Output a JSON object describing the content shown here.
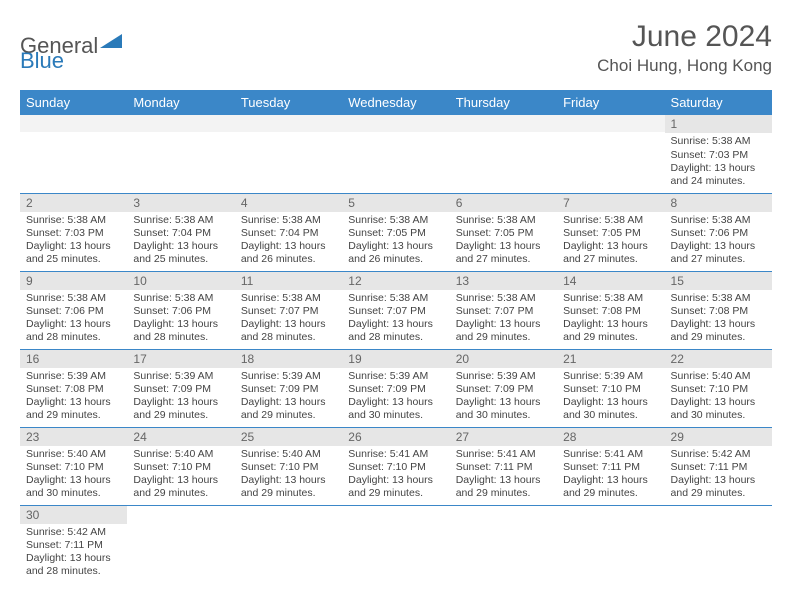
{
  "logo": {
    "part1": "General",
    "part2": "Blue"
  },
  "title": "June 2024",
  "location": "Choi Hung, Hong Kong",
  "colors": {
    "header_bg": "#3b87c8",
    "header_text": "#ffffff",
    "daynum_bg": "#e6e6e6",
    "row_divider": "#3b87c8",
    "logo_accent": "#2a7ab9",
    "text": "#444444"
  },
  "weekdays": [
    "Sunday",
    "Monday",
    "Tuesday",
    "Wednesday",
    "Thursday",
    "Friday",
    "Saturday"
  ],
  "weeks": [
    [
      null,
      null,
      null,
      null,
      null,
      null,
      {
        "d": "1",
        "sr": "Sunrise: 5:38 AM",
        "ss": "Sunset: 7:03 PM",
        "dl1": "Daylight: 13 hours",
        "dl2": "and 24 minutes."
      }
    ],
    [
      {
        "d": "2",
        "sr": "Sunrise: 5:38 AM",
        "ss": "Sunset: 7:03 PM",
        "dl1": "Daylight: 13 hours",
        "dl2": "and 25 minutes."
      },
      {
        "d": "3",
        "sr": "Sunrise: 5:38 AM",
        "ss": "Sunset: 7:04 PM",
        "dl1": "Daylight: 13 hours",
        "dl2": "and 25 minutes."
      },
      {
        "d": "4",
        "sr": "Sunrise: 5:38 AM",
        "ss": "Sunset: 7:04 PM",
        "dl1": "Daylight: 13 hours",
        "dl2": "and 26 minutes."
      },
      {
        "d": "5",
        "sr": "Sunrise: 5:38 AM",
        "ss": "Sunset: 7:05 PM",
        "dl1": "Daylight: 13 hours",
        "dl2": "and 26 minutes."
      },
      {
        "d": "6",
        "sr": "Sunrise: 5:38 AM",
        "ss": "Sunset: 7:05 PM",
        "dl1": "Daylight: 13 hours",
        "dl2": "and 27 minutes."
      },
      {
        "d": "7",
        "sr": "Sunrise: 5:38 AM",
        "ss": "Sunset: 7:05 PM",
        "dl1": "Daylight: 13 hours",
        "dl2": "and 27 minutes."
      },
      {
        "d": "8",
        "sr": "Sunrise: 5:38 AM",
        "ss": "Sunset: 7:06 PM",
        "dl1": "Daylight: 13 hours",
        "dl2": "and 27 minutes."
      }
    ],
    [
      {
        "d": "9",
        "sr": "Sunrise: 5:38 AM",
        "ss": "Sunset: 7:06 PM",
        "dl1": "Daylight: 13 hours",
        "dl2": "and 28 minutes."
      },
      {
        "d": "10",
        "sr": "Sunrise: 5:38 AM",
        "ss": "Sunset: 7:06 PM",
        "dl1": "Daylight: 13 hours",
        "dl2": "and 28 minutes."
      },
      {
        "d": "11",
        "sr": "Sunrise: 5:38 AM",
        "ss": "Sunset: 7:07 PM",
        "dl1": "Daylight: 13 hours",
        "dl2": "and 28 minutes."
      },
      {
        "d": "12",
        "sr": "Sunrise: 5:38 AM",
        "ss": "Sunset: 7:07 PM",
        "dl1": "Daylight: 13 hours",
        "dl2": "and 28 minutes."
      },
      {
        "d": "13",
        "sr": "Sunrise: 5:38 AM",
        "ss": "Sunset: 7:07 PM",
        "dl1": "Daylight: 13 hours",
        "dl2": "and 29 minutes."
      },
      {
        "d": "14",
        "sr": "Sunrise: 5:38 AM",
        "ss": "Sunset: 7:08 PM",
        "dl1": "Daylight: 13 hours",
        "dl2": "and 29 minutes."
      },
      {
        "d": "15",
        "sr": "Sunrise: 5:38 AM",
        "ss": "Sunset: 7:08 PM",
        "dl1": "Daylight: 13 hours",
        "dl2": "and 29 minutes."
      }
    ],
    [
      {
        "d": "16",
        "sr": "Sunrise: 5:39 AM",
        "ss": "Sunset: 7:08 PM",
        "dl1": "Daylight: 13 hours",
        "dl2": "and 29 minutes."
      },
      {
        "d": "17",
        "sr": "Sunrise: 5:39 AM",
        "ss": "Sunset: 7:09 PM",
        "dl1": "Daylight: 13 hours",
        "dl2": "and 29 minutes."
      },
      {
        "d": "18",
        "sr": "Sunrise: 5:39 AM",
        "ss": "Sunset: 7:09 PM",
        "dl1": "Daylight: 13 hours",
        "dl2": "and 29 minutes."
      },
      {
        "d": "19",
        "sr": "Sunrise: 5:39 AM",
        "ss": "Sunset: 7:09 PM",
        "dl1": "Daylight: 13 hours",
        "dl2": "and 30 minutes."
      },
      {
        "d": "20",
        "sr": "Sunrise: 5:39 AM",
        "ss": "Sunset: 7:09 PM",
        "dl1": "Daylight: 13 hours",
        "dl2": "and 30 minutes."
      },
      {
        "d": "21",
        "sr": "Sunrise: 5:39 AM",
        "ss": "Sunset: 7:10 PM",
        "dl1": "Daylight: 13 hours",
        "dl2": "and 30 minutes."
      },
      {
        "d": "22",
        "sr": "Sunrise: 5:40 AM",
        "ss": "Sunset: 7:10 PM",
        "dl1": "Daylight: 13 hours",
        "dl2": "and 30 minutes."
      }
    ],
    [
      {
        "d": "23",
        "sr": "Sunrise: 5:40 AM",
        "ss": "Sunset: 7:10 PM",
        "dl1": "Daylight: 13 hours",
        "dl2": "and 30 minutes."
      },
      {
        "d": "24",
        "sr": "Sunrise: 5:40 AM",
        "ss": "Sunset: 7:10 PM",
        "dl1": "Daylight: 13 hours",
        "dl2": "and 29 minutes."
      },
      {
        "d": "25",
        "sr": "Sunrise: 5:40 AM",
        "ss": "Sunset: 7:10 PM",
        "dl1": "Daylight: 13 hours",
        "dl2": "and 29 minutes."
      },
      {
        "d": "26",
        "sr": "Sunrise: 5:41 AM",
        "ss": "Sunset: 7:10 PM",
        "dl1": "Daylight: 13 hours",
        "dl2": "and 29 minutes."
      },
      {
        "d": "27",
        "sr": "Sunrise: 5:41 AM",
        "ss": "Sunset: 7:11 PM",
        "dl1": "Daylight: 13 hours",
        "dl2": "and 29 minutes."
      },
      {
        "d": "28",
        "sr": "Sunrise: 5:41 AM",
        "ss": "Sunset: 7:11 PM",
        "dl1": "Daylight: 13 hours",
        "dl2": "and 29 minutes."
      },
      {
        "d": "29",
        "sr": "Sunrise: 5:42 AM",
        "ss": "Sunset: 7:11 PM",
        "dl1": "Daylight: 13 hours",
        "dl2": "and 29 minutes."
      }
    ],
    [
      {
        "d": "30",
        "sr": "Sunrise: 5:42 AM",
        "ss": "Sunset: 7:11 PM",
        "dl1": "Daylight: 13 hours",
        "dl2": "and 28 minutes."
      },
      null,
      null,
      null,
      null,
      null,
      null
    ]
  ]
}
